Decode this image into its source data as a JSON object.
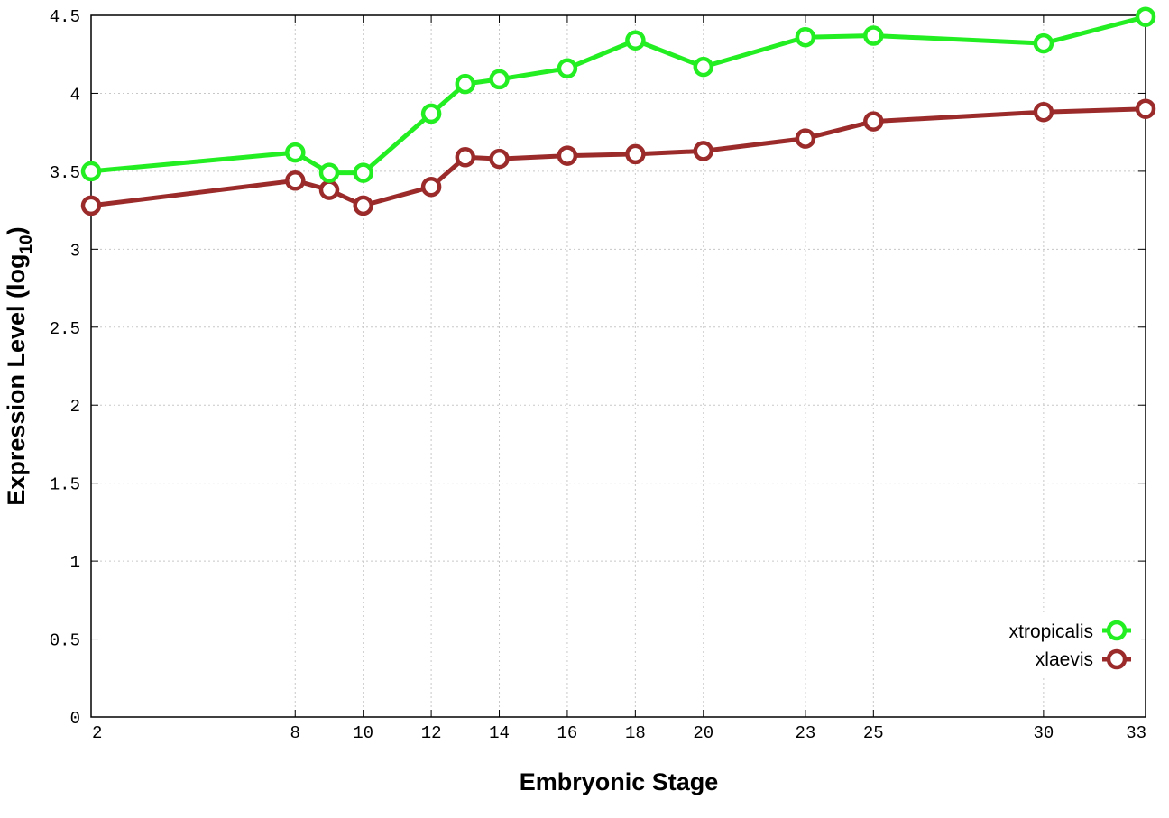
{
  "chart_data": {
    "type": "line",
    "xlabel": "Embryonic Stage",
    "ylabel_main": "Expression Level (log",
    "ylabel_sub": "10",
    "ylabel_close": ")",
    "x_ticks": [
      "2",
      "8",
      "10",
      "12",
      "14",
      "16",
      "18",
      "20",
      "23",
      "25",
      "30",
      "33"
    ],
    "y_ticks": [
      "0",
      "0.5",
      "1",
      "1.5",
      "2",
      "2.5",
      "3",
      "3.5",
      "4",
      "4.5"
    ],
    "ylim": [
      0,
      4.5
    ],
    "grid": true,
    "legend_position": "bottom-right",
    "series": [
      {
        "name": "xtropicalis",
        "color": "#22ee22",
        "x": [
          2,
          8,
          9,
          10,
          12,
          13,
          14,
          16,
          18,
          20,
          23,
          25,
          30,
          33
        ],
        "values": [
          3.5,
          3.62,
          3.49,
          3.49,
          3.87,
          4.06,
          4.09,
          4.16,
          4.34,
          4.17,
          4.36,
          4.37,
          4.32,
          4.49
        ]
      },
      {
        "name": "xlaevis",
        "color": "#9b2b2b",
        "x": [
          2,
          8,
          9,
          10,
          12,
          13,
          14,
          16,
          18,
          20,
          23,
          25,
          30,
          33
        ],
        "values": [
          3.28,
          3.44,
          3.38,
          3.28,
          3.4,
          3.59,
          3.58,
          3.6,
          3.61,
          3.63,
          3.71,
          3.82,
          3.88,
          3.9
        ]
      }
    ]
  }
}
